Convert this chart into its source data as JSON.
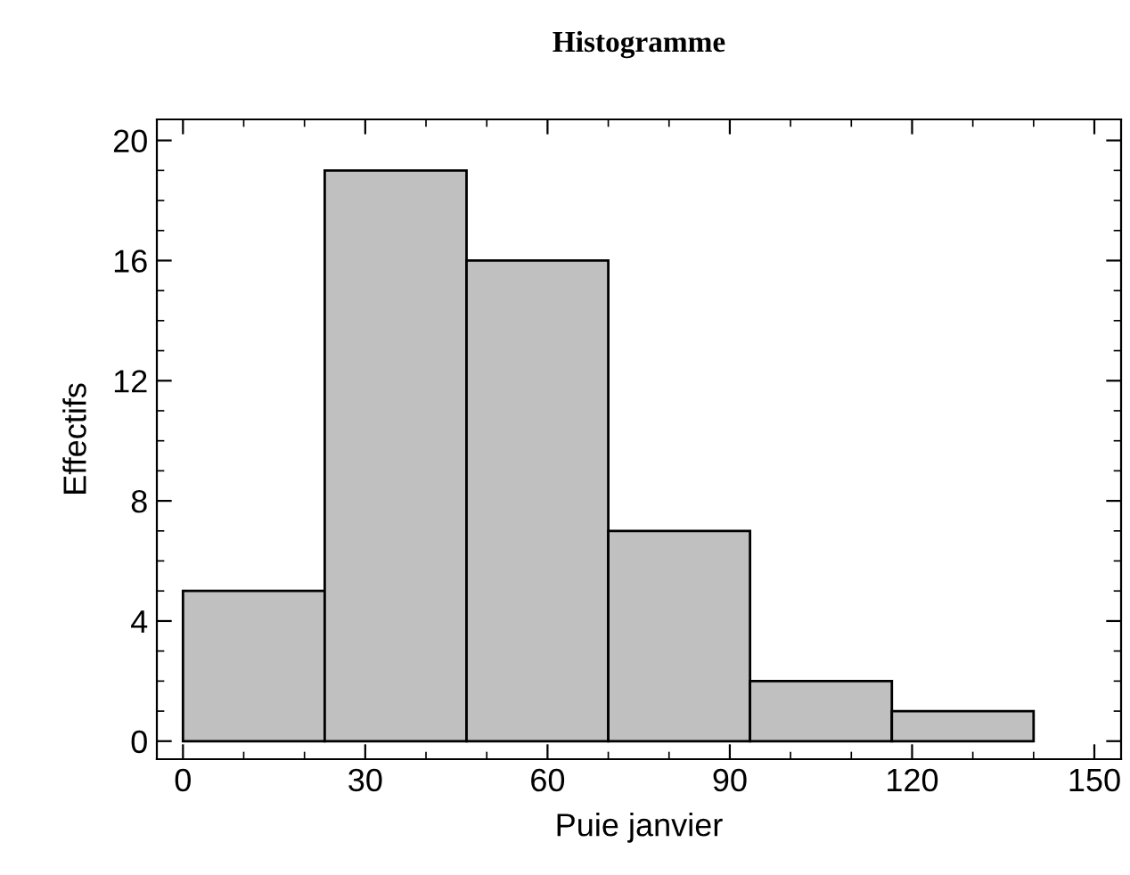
{
  "chart_data": {
    "type": "histogram",
    "title": "Histogramme",
    "xlabel": "Puie janvier",
    "ylabel": "Effectifs",
    "bins": [
      0,
      23.33,
      46.67,
      70,
      93.33,
      116.67,
      140
    ],
    "values": [
      5,
      19,
      16,
      7,
      2,
      1
    ],
    "color": "#c0c0c0",
    "xlim": [
      -4.3,
      154.4
    ],
    "xticks": [
      0,
      30,
      60,
      90,
      120,
      150
    ],
    "ylim": [
      -0.6,
      20.7
    ],
    "yticks": [
      0,
      4,
      8,
      12,
      16,
      20
    ],
    "grid": false
  }
}
